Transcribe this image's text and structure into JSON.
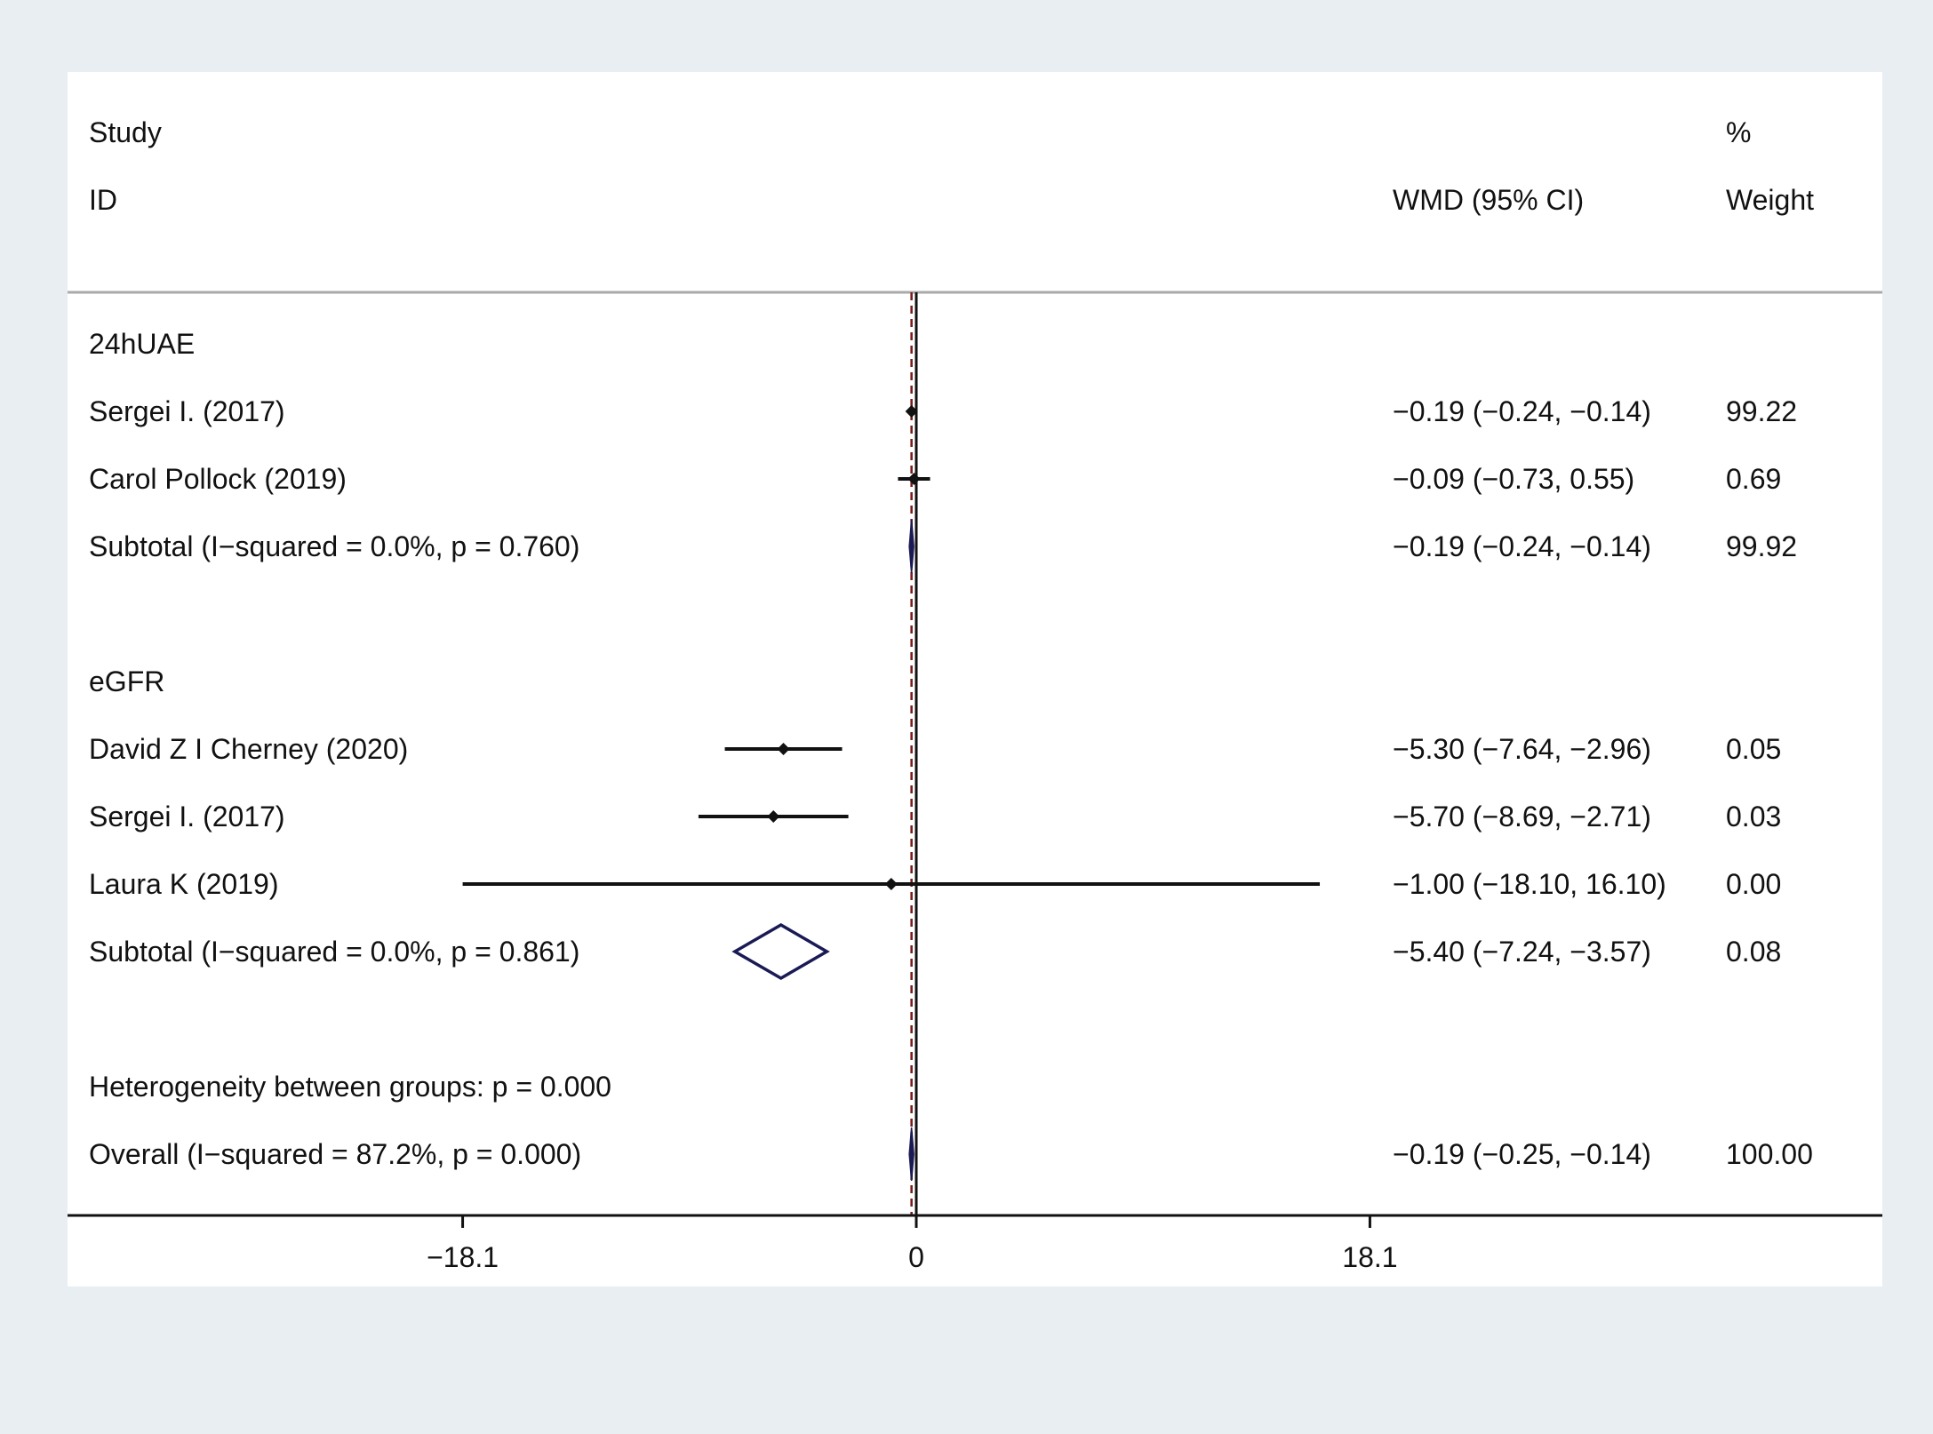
{
  "chart_data": {
    "type": "forest",
    "header": {
      "study_line1": "Study",
      "study_line2": "ID",
      "effect_label": "WMD (95% CI)",
      "weight_line1": "%",
      "weight_line2": "Weight"
    },
    "x_axis": {
      "ticks": [
        -18.1,
        0,
        18.1
      ],
      "tick_labels": [
        "−18.1",
        "0",
        "18.1"
      ],
      "range": [
        -36.6,
        35.4
      ],
      "null_line": 0,
      "overall_line": -0.19
    },
    "rows": [
      {
        "kind": "group",
        "label": "24hUAE"
      },
      {
        "kind": "study",
        "label": "Sergei I. (2017)",
        "est": -0.19,
        "lo": -0.24,
        "hi": -0.14,
        "ci_text": "−0.19 (−0.24, −0.14)",
        "weight": "99.22"
      },
      {
        "kind": "study",
        "label": "Carol Pollock (2019)",
        "est": -0.09,
        "lo": -0.73,
        "hi": 0.55,
        "ci_text": "−0.09 (−0.73, 0.55)",
        "weight": "0.69"
      },
      {
        "kind": "subtotal",
        "label": "Subtotal  (I−squared = 0.0%, p = 0.760)",
        "est": -0.19,
        "lo": -0.24,
        "hi": -0.14,
        "ci_text": "−0.19 (−0.24, −0.14)",
        "weight": "99.92"
      },
      {
        "kind": "blank"
      },
      {
        "kind": "group",
        "label": "eGFR"
      },
      {
        "kind": "study",
        "label": "David Z I Cherney (2020)",
        "est": -5.3,
        "lo": -7.64,
        "hi": -2.96,
        "ci_text": "−5.30 (−7.64, −2.96)",
        "weight": "0.05"
      },
      {
        "kind": "study",
        "label": "Sergei I. (2017)",
        "est": -5.7,
        "lo": -8.69,
        "hi": -2.71,
        "ci_text": "−5.70 (−8.69, −2.71)",
        "weight": "0.03"
      },
      {
        "kind": "study",
        "label": "Laura K (2019)",
        "est": -1.0,
        "lo": -18.1,
        "hi": 16.1,
        "ci_text": "−1.00 (−18.10, 16.10)",
        "weight": "0.00"
      },
      {
        "kind": "subtotal",
        "label": "Subtotal  (I−squared = 0.0%, p = 0.861)",
        "est": -5.4,
        "lo": -7.24,
        "hi": -3.57,
        "ci_text": "−5.40 (−7.24, −3.57)",
        "weight": "0.08"
      },
      {
        "kind": "blank"
      },
      {
        "kind": "note",
        "label": "Heterogeneity between groups: p = 0.000"
      },
      {
        "kind": "overall",
        "label": "Overall  (I−squared = 87.2%, p = 0.000)",
        "est": -0.19,
        "lo": -0.25,
        "hi": -0.14,
        "ci_text": "−0.19 (−0.25, −0.14)",
        "weight": "100.00"
      }
    ],
    "colors": {
      "marker": "#111111",
      "diamond_stroke": "#1a1a55",
      "diamond_fill": "#1a1a55",
      "overall_line": "#7a1a1a",
      "axis": "#111111",
      "header_rule": "#aaaaaa"
    }
  }
}
